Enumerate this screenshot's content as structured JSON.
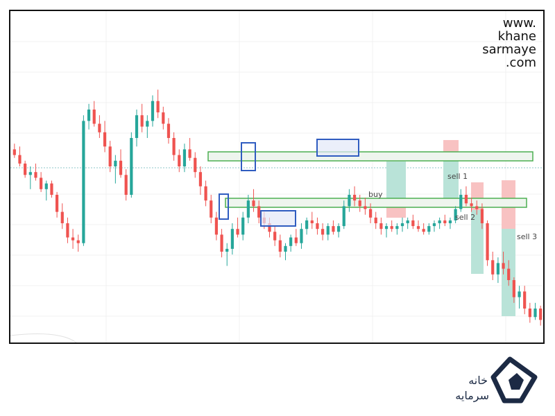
{
  "watermark": {
    "line1": "www.",
    "line2": "khane",
    "line3": "sarmaye",
    "line4": ".com"
  },
  "labels": {
    "buy": "buy",
    "sell1": "sell 1",
    "sell2": "sell 2",
    "sell3": "sell 3"
  },
  "logo": {
    "text_top": "خانه",
    "text_bottom": "سرمایه"
  },
  "colors": {
    "bull": "#26a69a",
    "bear": "#ef5350",
    "zone": "#4caf50",
    "zone_fill": "#eef5ee",
    "box": "#2f5cc0",
    "box_fill": "#e3e8f8",
    "target_fill": "#b9e3d8",
    "stop_fill": "#f8c2c2",
    "grid": "#f0f0f0",
    "dotted": "#8ec5c9"
  },
  "chart_data": {
    "type": "candlestick",
    "title": "",
    "xlabel": "",
    "ylabel": "",
    "grid": true,
    "ylim": [
      0,
      100
    ],
    "candles": [
      [
        66,
        68,
        63,
        64
      ],
      [
        64,
        67,
        60,
        61
      ],
      [
        61,
        62,
        56,
        57
      ],
      [
        57,
        60,
        52,
        58
      ],
      [
        58,
        61,
        55,
        56
      ],
      [
        56,
        58,
        51,
        52
      ],
      [
        52,
        55,
        48,
        54
      ],
      [
        54,
        55,
        49,
        50
      ],
      [
        50,
        51,
        42,
        44
      ],
      [
        44,
        47,
        38,
        40
      ],
      [
        40,
        42,
        33,
        35
      ],
      [
        35,
        38,
        31,
        34
      ],
      [
        34,
        36,
        30,
        33
      ],
      [
        33,
        78,
        32,
        76
      ],
      [
        76,
        82,
        73,
        80
      ],
      [
        80,
        83,
        74,
        75
      ],
      [
        75,
        78,
        70,
        72
      ],
      [
        72,
        76,
        65,
        67
      ],
      [
        67,
        69,
        58,
        60
      ],
      [
        60,
        64,
        54,
        62
      ],
      [
        62,
        66,
        56,
        57
      ],
      [
        57,
        59,
        48,
        50
      ],
      [
        50,
        72,
        49,
        70
      ],
      [
        70,
        80,
        67,
        78
      ],
      [
        78,
        82,
        72,
        74
      ],
      [
        74,
        78,
        70,
        76
      ],
      [
        76,
        85,
        74,
        83
      ],
      [
        83,
        87,
        77,
        79
      ],
      [
        79,
        81,
        73,
        75
      ],
      [
        75,
        77,
        68,
        70
      ],
      [
        70,
        72,
        62,
        64
      ],
      [
        64,
        66,
        58,
        60
      ],
      [
        60,
        68,
        58,
        66
      ],
      [
        66,
        70,
        62,
        63
      ],
      [
        63,
        65,
        56,
        58
      ],
      [
        58,
        60,
        50,
        53
      ],
      [
        53,
        55,
        46,
        48
      ],
      [
        48,
        50,
        40,
        42
      ],
      [
        42,
        44,
        34,
        36
      ],
      [
        36,
        38,
        28,
        30
      ],
      [
        30,
        33,
        25,
        31
      ],
      [
        31,
        40,
        29,
        38
      ],
      [
        38,
        42,
        35,
        36
      ],
      [
        36,
        44,
        34,
        42
      ],
      [
        42,
        50,
        40,
        48
      ],
      [
        48,
        52,
        44,
        46
      ],
      [
        46,
        48,
        40,
        42
      ],
      [
        42,
        44,
        38,
        40
      ],
      [
        40,
        42,
        35,
        37
      ],
      [
        37,
        39,
        32,
        34
      ],
      [
        34,
        36,
        28,
        30
      ],
      [
        30,
        33,
        27,
        32
      ],
      [
        32,
        36,
        30,
        35
      ],
      [
        35,
        38,
        32,
        33
      ],
      [
        33,
        40,
        31,
        38
      ],
      [
        38,
        42,
        36,
        41
      ],
      [
        41,
        44,
        38,
        40
      ],
      [
        40,
        42,
        36,
        38
      ],
      [
        38,
        40,
        34,
        36
      ],
      [
        36,
        40,
        34,
        39
      ],
      [
        39,
        41,
        36,
        37
      ],
      [
        37,
        40,
        35,
        39
      ],
      [
        39,
        48,
        38,
        46
      ],
      [
        46,
        52,
        44,
        50
      ],
      [
        50,
        53,
        46,
        48
      ],
      [
        48,
        50,
        44,
        46
      ],
      [
        46,
        49,
        43,
        45
      ],
      [
        45,
        47,
        40,
        42
      ],
      [
        42,
        44,
        38,
        40
      ],
      [
        40,
        42,
        36,
        38
      ],
      [
        38,
        40,
        35,
        39
      ],
      [
        39,
        41,
        37,
        38
      ],
      [
        38,
        40,
        36,
        39
      ],
      [
        39,
        42,
        37,
        40
      ],
      [
        40,
        42,
        38,
        41
      ],
      [
        41,
        43,
        38,
        39
      ],
      [
        39,
        41,
        37,
        38
      ],
      [
        38,
        40,
        36,
        37
      ],
      [
        37,
        40,
        36,
        39
      ],
      [
        39,
        41,
        37,
        40
      ],
      [
        40,
        42,
        38,
        41
      ],
      [
        41,
        43,
        39,
        40
      ],
      [
        40,
        42,
        38,
        41
      ],
      [
        41,
        46,
        40,
        45
      ],
      [
        45,
        52,
        44,
        50
      ],
      [
        50,
        53,
        46,
        47
      ],
      [
        47,
        49,
        44,
        46
      ],
      [
        46,
        48,
        43,
        45
      ],
      [
        45,
        47,
        38,
        40
      ],
      [
        40,
        41,
        25,
        27
      ],
      [
        27,
        30,
        20,
        22
      ],
      [
        22,
        28,
        19,
        26
      ],
      [
        26,
        30,
        22,
        24
      ],
      [
        24,
        27,
        18,
        20
      ],
      [
        20,
        21,
        12,
        14
      ],
      [
        14,
        18,
        10,
        16
      ],
      [
        16,
        18,
        8,
        10
      ],
      [
        10,
        12,
        5,
        7
      ],
      [
        7,
        12,
        6,
        10
      ],
      [
        10,
        11,
        4,
        6
      ]
    ]
  }
}
